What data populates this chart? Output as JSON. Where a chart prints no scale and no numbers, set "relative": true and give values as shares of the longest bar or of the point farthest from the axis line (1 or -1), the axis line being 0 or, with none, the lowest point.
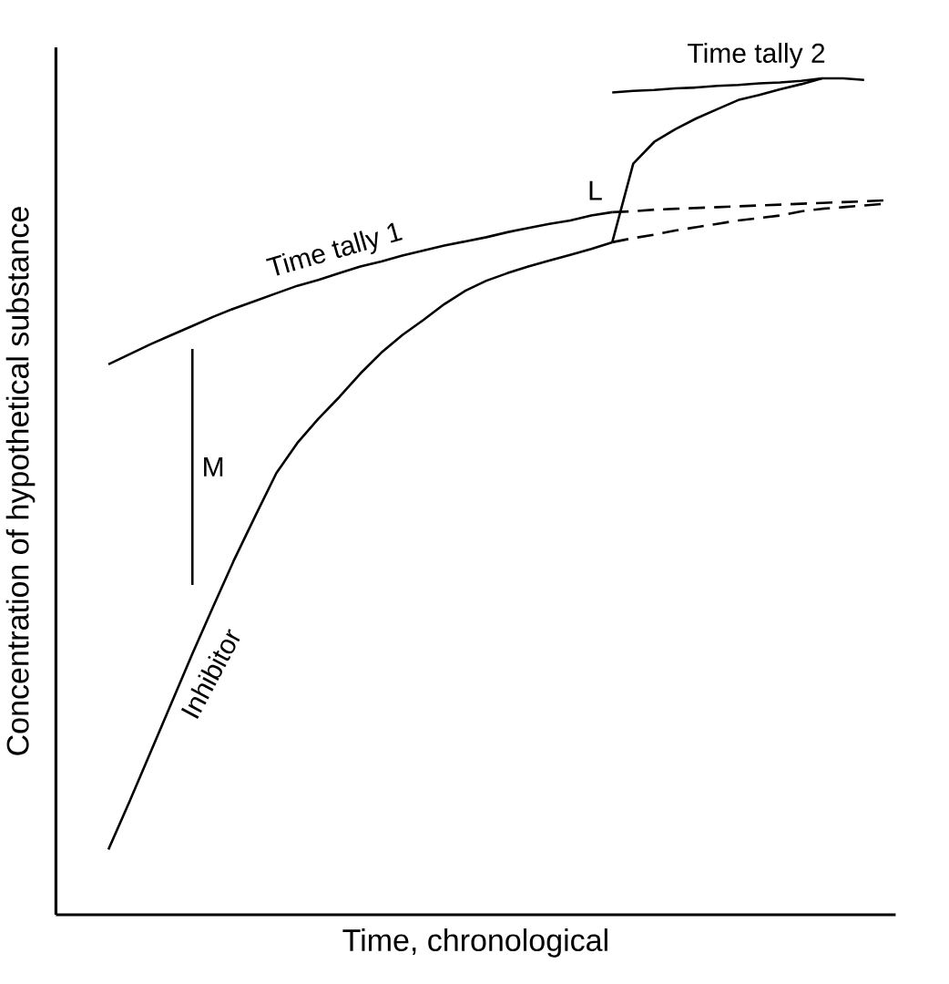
{
  "chart_data": {
    "type": "line",
    "relative": true,
    "xlabel": "Time, chronological",
    "ylabel": "Concentration of hypothetical substance",
    "tick_labels": false,
    "marker": "none",
    "line_style": "solid",
    "annotations": [
      "M"
    ],
    "categories": [
      null,
      null,
      null,
      null,
      null,
      null,
      null,
      null,
      null,
      null,
      null,
      null,
      null,
      null,
      null,
      null,
      null,
      null,
      null,
      null,
      null,
      null,
      null,
      null,
      null,
      null,
      null,
      null,
      null,
      null,
      null,
      null,
      null,
      null,
      null,
      null,
      null,
      null
    ],
    "series": [
      {
        "name": "Time tally 1",
        "color": "#000000",
        "values": [
          0.658,
          0.67,
          0.682,
          0.693,
          0.704,
          0.715,
          0.725,
          0.734,
          0.743,
          0.752,
          0.759,
          0.767,
          0.775,
          0.781,
          0.788,
          0.794,
          0.8,
          0.805,
          0.81,
          0.816,
          0.821,
          0.826,
          0.83,
          0.836,
          0.84,
          null,
          null,
          null,
          null,
          null,
          null,
          null,
          null,
          null,
          null,
          null,
          null,
          null
        ]
      },
      {
        "color": "#000000",
        "line_style": "dashed",
        "values": [
          null,
          null,
          null,
          null,
          null,
          null,
          null,
          null,
          null,
          null,
          null,
          null,
          null,
          null,
          null,
          null,
          null,
          null,
          null,
          null,
          null,
          null,
          null,
          null,
          0.84,
          0.841,
          0.843,
          0.844,
          0.845,
          0.846,
          0.847,
          0.848,
          0.849,
          0.85,
          0.851,
          0.852,
          0.853,
          0.854
        ]
      },
      {
        "name": "Inhibitor",
        "color": "#000000",
        "values": [
          0.078,
          0.135,
          0.194,
          0.253,
          0.312,
          0.369,
          0.425,
          0.477,
          0.528,
          0.564,
          0.593,
          0.619,
          0.647,
          0.672,
          0.693,
          0.711,
          0.73,
          0.746,
          0.758,
          0.767,
          0.775,
          0.782,
          0.789,
          0.796,
          0.804,
          null,
          null,
          null,
          null,
          null,
          null,
          null,
          null,
          null,
          null,
          null,
          null,
          null
        ]
      },
      {
        "color": "#000000",
        "line_style": "dashed",
        "values": [
          null,
          null,
          null,
          null,
          null,
          null,
          null,
          null,
          null,
          null,
          null,
          null,
          null,
          null,
          null,
          null,
          null,
          null,
          null,
          null,
          null,
          null,
          null,
          null,
          0.804,
          0.809,
          0.813,
          0.818,
          0.822,
          0.826,
          0.83,
          0.833,
          0.836,
          0.841,
          0.844,
          0.846,
          0.848,
          0.85
        ]
      },
      {
        "name": "L",
        "color": "#000000",
        "values": [
          null,
          null,
          null,
          null,
          null,
          null,
          null,
          null,
          null,
          null,
          null,
          null,
          null,
          null,
          null,
          null,
          null,
          null,
          null,
          null,
          null,
          null,
          null,
          null,
          0.804,
          0.898,
          0.924,
          0.939,
          0.952,
          0.963,
          0.974,
          0.98,
          0.987,
          0.993,
          1,
          1,
          0.998,
          null
        ]
      },
      {
        "name": "Time tally 2",
        "color": "#000000",
        "values": [
          null,
          null,
          null,
          null,
          null,
          null,
          null,
          null,
          null,
          null,
          null,
          null,
          null,
          null,
          null,
          null,
          null,
          null,
          null,
          null,
          null,
          null,
          null,
          null,
          0.983,
          0.985,
          0.986,
          0.988,
          0.989,
          0.991,
          0.992,
          0.994,
          0.995,
          0.997,
          1,
          null,
          null,
          null
        ]
      }
    ]
  }
}
